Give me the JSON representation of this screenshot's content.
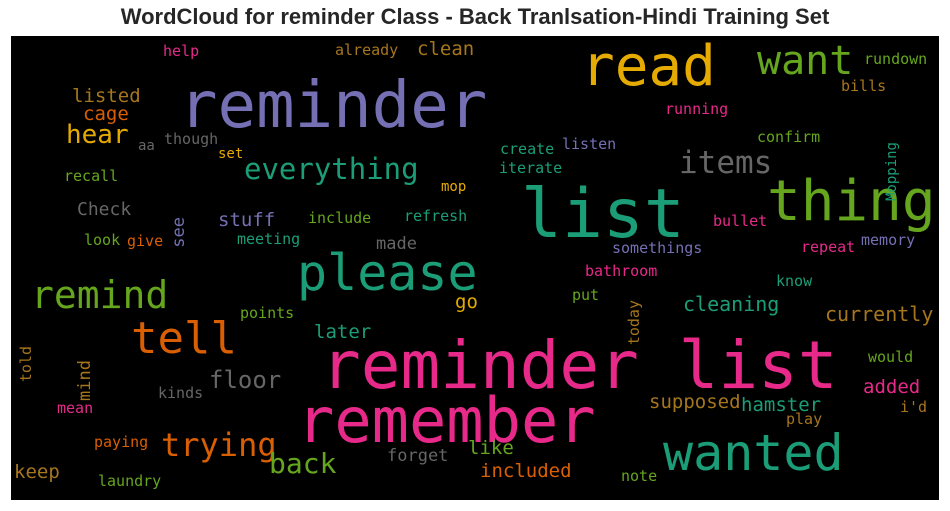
{
  "title": "WordCloud for reminder Class - Back Tranlsation-Hindi Training Set",
  "chart_data": {
    "type": "wordcloud",
    "title": "WordCloud for reminder Class - Back Tranlsation-Hindi Training Set",
    "background": "#000000",
    "palette": [
      "#1b9e77",
      "#d95f02",
      "#7570b3",
      "#e7298a",
      "#66a61e",
      "#e6ab02",
      "#a6761d",
      "#666666"
    ],
    "words": [
      {
        "text": "reminder list",
        "color": "#e7298a"
      },
      {
        "text": "reminder",
        "color": "#7570b3"
      },
      {
        "text": "list",
        "color": "#1b9e77"
      },
      {
        "text": "remember",
        "color": "#e7298a"
      },
      {
        "text": "read",
        "color": "#e6ab02"
      },
      {
        "text": "thing",
        "color": "#66a61e"
      },
      {
        "text": "please",
        "color": "#1b9e77"
      },
      {
        "text": "wanted",
        "color": "#1b9e77"
      },
      {
        "text": "want",
        "color": "#66a61e"
      },
      {
        "text": "tell",
        "color": "#d95f02"
      },
      {
        "text": "remind",
        "color": "#66a61e"
      },
      {
        "text": "trying",
        "color": "#d95f02"
      },
      {
        "text": "everything",
        "color": "#1b9e77"
      },
      {
        "text": "items",
        "color": "#666666"
      },
      {
        "text": "hear",
        "color": "#e6ab02"
      },
      {
        "text": "back",
        "color": "#66a61e"
      },
      {
        "text": "floor",
        "color": "#666666"
      },
      {
        "text": "cleaning",
        "color": "#1b9e77"
      },
      {
        "text": "currently",
        "color": "#a6761d"
      },
      {
        "text": "listed",
        "color": "#a6761d"
      },
      {
        "text": "cage",
        "color": "#d95f02"
      },
      {
        "text": "clean",
        "color": "#a6761d"
      },
      {
        "text": "stuff",
        "color": "#7570b3"
      },
      {
        "text": "Check",
        "color": "#666666"
      },
      {
        "text": "later",
        "color": "#1b9e77"
      },
      {
        "text": "included",
        "color": "#d95f02"
      },
      {
        "text": "like",
        "color": "#66a61e"
      },
      {
        "text": "supposed",
        "color": "#a6761d"
      },
      {
        "text": "hamster",
        "color": "#1b9e77"
      },
      {
        "text": "added",
        "color": "#e7298a"
      },
      {
        "text": "keep",
        "color": "#a6761d"
      },
      {
        "text": "forget",
        "color": "#666666"
      },
      {
        "text": "go",
        "color": "#e6ab02"
      },
      {
        "text": "made",
        "color": "#666666"
      },
      {
        "text": "see",
        "color": "#7570b3",
        "rotated": true
      },
      {
        "text": "mind",
        "color": "#a6761d",
        "rotated": true
      },
      {
        "text": "help",
        "color": "#e7298a"
      },
      {
        "text": "already",
        "color": "#a6761d"
      },
      {
        "text": "rundown",
        "color": "#66a61e"
      },
      {
        "text": "bills",
        "color": "#a6761d"
      },
      {
        "text": "running",
        "color": "#e7298a"
      },
      {
        "text": "Mopping",
        "color": "#1b9e77",
        "rotated": true
      },
      {
        "text": "confirm",
        "color": "#66a61e"
      },
      {
        "text": "aa",
        "color": "#666666"
      },
      {
        "text": "though",
        "color": "#666666"
      },
      {
        "text": "set",
        "color": "#e6ab02"
      },
      {
        "text": "create",
        "color": "#1b9e77"
      },
      {
        "text": "listen",
        "color": "#7570b3"
      },
      {
        "text": "iterate",
        "color": "#1b9e77"
      },
      {
        "text": "recall",
        "color": "#66a61e"
      },
      {
        "text": "mop",
        "color": "#e6ab02"
      },
      {
        "text": "include",
        "color": "#66a61e"
      },
      {
        "text": "refresh",
        "color": "#1b9e77"
      },
      {
        "text": "bullet",
        "color": "#e7298a"
      },
      {
        "text": "look",
        "color": "#66a61e"
      },
      {
        "text": "give",
        "color": "#d95f02"
      },
      {
        "text": "meeting",
        "color": "#1b9e77"
      },
      {
        "text": "somethings",
        "color": "#7570b3"
      },
      {
        "text": "repeat",
        "color": "#e7298a"
      },
      {
        "text": "memory",
        "color": "#7570b3"
      },
      {
        "text": "bathroom",
        "color": "#e7298a"
      },
      {
        "text": "know",
        "color": "#1b9e77"
      },
      {
        "text": "put",
        "color": "#66a61e"
      },
      {
        "text": "points",
        "color": "#66a61e"
      },
      {
        "text": "today",
        "color": "#a6761d",
        "rotated": true
      },
      {
        "text": "told",
        "color": "#a6761d",
        "rotated": true
      },
      {
        "text": "would",
        "color": "#66a61e"
      },
      {
        "text": "kinds",
        "color": "#666666"
      },
      {
        "text": "i'd",
        "color": "#a6761d"
      },
      {
        "text": "play",
        "color": "#a6761d"
      },
      {
        "text": "mean",
        "color": "#e7298a"
      },
      {
        "text": "paying",
        "color": "#d95f02"
      },
      {
        "text": "laundry",
        "color": "#66a61e"
      },
      {
        "text": "note",
        "color": "#66a61e"
      }
    ]
  }
}
